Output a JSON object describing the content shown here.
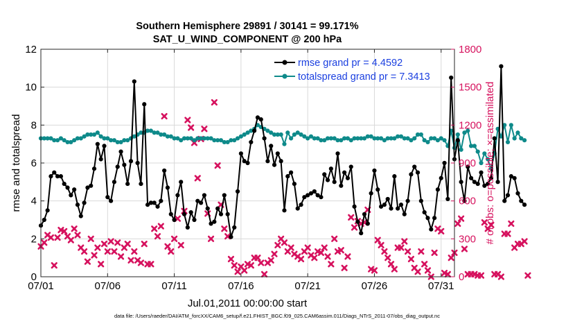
{
  "chart_data": {
    "type": "line",
    "title": "Southern Hemisphere 29891 / 30141 = 99.171%",
    "subtitle": "SAT_U_WIND_COMPONENT @ 200 hPa",
    "xlabel": "Jul.01,2011 00:00:00 start",
    "ylabel": "rmse and totalspread",
    "y2label": "# of obs: o=possible; ×=assimilated",
    "footer": "data file: /Users/raeder/DAI/ATM_forcXX/CAM6_setup/f.e21.FHIST_BGC.f09_025.CAM6assim.011/Diags_NTrS_2011-07/obs_diag_output.nc",
    "xlim": [
      1,
      32
    ],
    "ylim": [
      0,
      12
    ],
    "y2lim": [
      0,
      1800
    ],
    "xticks": [
      1,
      6,
      11,
      16,
      21,
      26,
      31
    ],
    "xtick_labels": [
      "07/01",
      "07/06",
      "07/11",
      "07/16",
      "07/21",
      "07/26",
      "07/31"
    ],
    "yticks": [
      0,
      2,
      4,
      6,
      8,
      10,
      12
    ],
    "ytick_labels": [
      "0",
      "2",
      "4",
      "6",
      "8",
      "10",
      "12"
    ],
    "y2ticks": [
      0,
      300,
      600,
      900,
      1200,
      1500,
      1800
    ],
    "y2tick_labels": [
      "0",
      "300",
      "600",
      "900",
      "1200",
      "1500",
      "1800"
    ],
    "grid": true,
    "legend_position": "top-right",
    "x_units": "days since Jul.01, 2011 00:00 + 1 (6-hourly)",
    "series": [
      {
        "name": "rmse grand pr = 4.4592",
        "axis": "left",
        "color": "#000000",
        "marker": "circle",
        "x_start": 1.0,
        "dx": 0.25,
        "values": [
          2.7,
          3.0,
          3.5,
          5.3,
          5.5,
          5.3,
          5.3,
          4.9,
          4.7,
          4.3,
          4.6,
          3.8,
          3.2,
          3.9,
          4.7,
          4.8,
          5.7,
          7.0,
          6.2,
          6.9,
          4.2,
          4.0,
          5.0,
          5.8,
          6.6,
          5.9,
          4.9,
          6.1,
          10.3,
          6.0,
          4.9,
          9.1,
          3.8,
          3.9,
          3.9,
          3.7,
          4.0,
          5.6,
          4.7,
          3.3,
          3.0,
          4.3,
          5.0,
          3.3,
          2.6,
          3.4,
          3.0,
          4.0,
          3.9,
          4.3,
          3.6,
          2.8,
          2.9,
          3.6,
          3.3,
          4.3,
          3.3,
          2.1,
          2.6,
          4.5,
          6.5,
          6.1,
          6.0,
          7.1,
          7.7,
          8.4,
          8.3,
          7.3,
          6.1,
          6.9,
          5.9,
          6.5,
          6.1,
          3.5,
          5.3,
          5.5,
          4.9,
          3.6,
          3.8,
          4.2,
          4.3,
          4.4,
          4.5,
          4.3,
          4.2,
          5.4,
          5.1,
          5.7,
          5.0,
          6.5,
          4.8,
          5.5,
          5.2,
          5.8,
          3.7,
          2.9,
          2.3,
          3.3,
          2.8,
          4.4,
          5.6,
          4.6,
          3.7,
          3.8,
          4.1,
          3.6,
          5.3,
          3.6,
          3.8,
          3.3,
          4.0,
          5.4,
          5.8,
          5.5,
          4.0,
          3.4,
          3.1,
          2.5,
          3.1,
          4.6,
          5.2,
          6.0,
          4.1,
          10.5,
          6.2,
          7.2,
          5.0,
          4.0,
          5.8,
          5.2,
          5.0,
          4.9,
          5.5,
          4.8,
          4.9,
          5.2,
          7.3,
          5.0,
          11.1,
          4.0,
          4.3,
          5.3,
          5.2,
          4.4,
          4.0,
          3.8
        ]
      },
      {
        "name": "totalspread grand pr = 7.3413",
        "axis": "left",
        "color": "#0e8a8a",
        "marker": "circle",
        "x_start": 1.0,
        "dx": 0.25,
        "values": [
          7.3,
          7.3,
          7.3,
          7.3,
          7.2,
          7.2,
          7.3,
          7.2,
          7.1,
          7.1,
          7.2,
          7.3,
          7.3,
          7.4,
          7.5,
          7.5,
          7.5,
          7.6,
          7.4,
          7.3,
          7.3,
          7.2,
          7.2,
          7.1,
          7.1,
          7.2,
          7.2,
          7.3,
          7.4,
          7.5,
          7.6,
          7.6,
          7.7,
          7.7,
          7.6,
          7.6,
          7.5,
          7.5,
          7.4,
          7.4,
          7.3,
          7.3,
          7.2,
          7.3,
          7.3,
          7.3,
          7.2,
          7.3,
          7.3,
          7.3,
          7.3,
          7.3,
          7.2,
          7.2,
          7.2,
          7.1,
          7.1,
          7.2,
          7.2,
          7.3,
          7.4,
          7.5,
          7.6,
          7.7,
          7.8,
          8.0,
          7.9,
          7.8,
          7.7,
          7.6,
          7.5,
          7.5,
          7.5,
          7.0,
          7.6,
          7.3,
          7.5,
          7.6,
          7.5,
          7.4,
          7.3,
          7.4,
          7.3,
          7.3,
          7.2,
          7.2,
          7.3,
          7.3,
          7.3,
          7.2,
          7.2,
          7.3,
          7.3,
          7.2,
          7.3,
          7.3,
          7.3,
          7.3,
          7.4,
          7.4,
          7.3,
          7.3,
          7.3,
          7.2,
          7.3,
          7.3,
          7.3,
          7.4,
          7.4,
          7.3,
          7.3,
          7.2,
          7.3,
          7.5,
          7.5,
          7.2,
          7.1,
          7.3,
          7.3,
          7.2,
          7.3,
          7.2,
          6.9,
          7.7,
          6.8,
          7.5,
          6.7,
          7.6,
          7.7,
          6.9,
          6.9,
          6.6,
          6.0,
          6.5,
          6.2,
          5.7,
          6.5,
          7.8,
          7.4,
          8.0,
          7.1,
          8.0,
          7.3,
          7.6,
          7.3,
          7.2
        ]
      },
      {
        "name": "assimilated",
        "axis": "right",
        "color": "#d6125e",
        "marker": "x",
        "x_start": 1.0,
        "dx": 0.25,
        "values": [
          240,
          270,
          330,
          310,
          90,
          310,
          370,
          360,
          320,
          290,
          380,
          330,
          230,
          200,
          120,
          300,
          170,
          230,
          100,
          260,
          200,
          280,
          200,
          270,
          160,
          230,
          260,
          130,
          200,
          130,
          110,
          260,
          100,
          100,
          380,
          320,
          400,
          1270,
          240,
          200,
          300,
          460,
          250,
          520,
          1240,
          1180,
          1060,
          780,
          1090,
          1170,
          500,
          300,
          1380,
          880,
          570,
          380,
          320,
          140,
          90,
          40,
          80,
          50,
          100,
          90,
          150,
          150,
          110,
          20,
          110,
          130,
          180,
          250,
          300,
          270,
          200,
          230,
          180,
          160,
          140,
          200,
          230,
          170,
          150,
          200,
          190,
          230,
          160,
          100,
          300,
          200,
          210,
          70,
          160,
          470,
          390,
          440,
          420,
          430,
          530,
          60,
          50,
          290,
          250,
          200,
          150,
          100,
          60,
          230,
          230,
          280,
          200,
          140,
          70,
          40,
          200,
          100,
          50,
          0,
          190,
          380,
          360,
          30,
          20,
          150,
          190,
          420,
          460,
          220,
          20,
          20,
          20,
          10,
          10,
          430,
          380,
          410,
          20,
          20,
          0,
          340,
          340,
          420,
          230,
          260,
          260,
          280,
          10
        ]
      }
    ]
  },
  "legend": [
    {
      "label": "rmse grand pr = 4.4592",
      "color": "#000000"
    },
    {
      "label": "totalspread grand pr = 7.3413",
      "color": "#0e8a8a"
    }
  ],
  "colors": {
    "axis_left": "#000000",
    "axis_right": "#d6125e",
    "legend_text": "#1a3fe0",
    "grid": "#d9d9d9"
  }
}
